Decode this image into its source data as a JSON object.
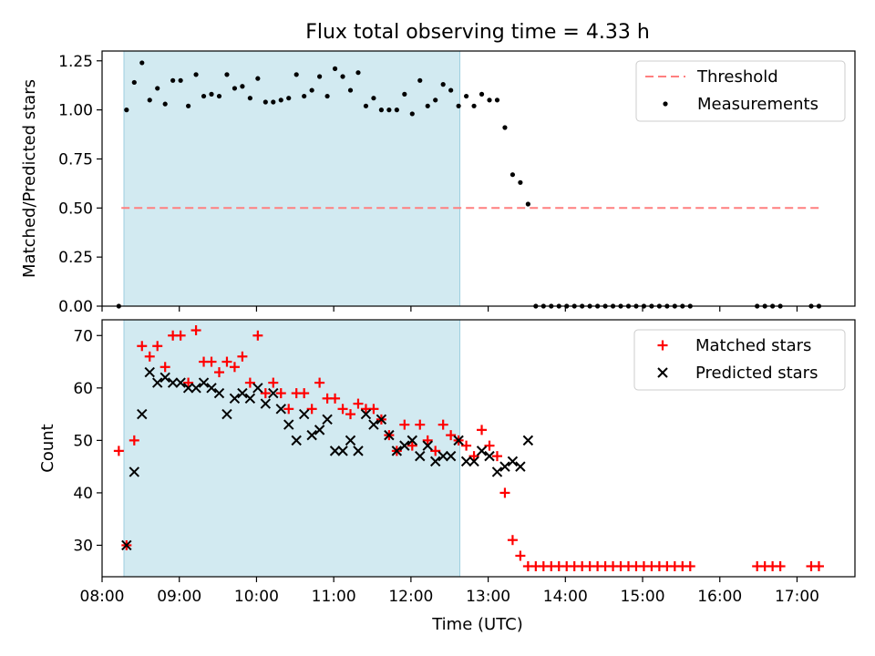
{
  "title": "Flux total observing time = 4.33 h",
  "chart_data": [
    {
      "panel": "top",
      "type": "scatter",
      "ylabel": "Matched/Predicted stars",
      "xlabel": "",
      "ylim": [
        0.0,
        1.3
      ],
      "yticks": [
        "0.00",
        "0.25",
        "0.50",
        "0.75",
        "1.00",
        "1.25"
      ],
      "xlim": [
        "08:00",
        "17:45"
      ],
      "shaded_span": [
        "08:17",
        "12:38"
      ],
      "shade_color": "#add8e6",
      "legend_position": "upper right",
      "threshold": {
        "name": "Threshold",
        "value": 0.5,
        "x": [
          "08:15",
          "17:20"
        ],
        "color": "#ff7f7f",
        "style": "dashed"
      },
      "series": [
        {
          "name": "Measurements",
          "color": "#000000",
          "marker": "dot",
          "points": [
            [
              "08:13",
              0.0
            ],
            [
              "08:19",
              1.0
            ],
            [
              "08:25",
              1.14
            ],
            [
              "08:31",
              1.24
            ],
            [
              "08:37",
              1.05
            ],
            [
              "08:43",
              1.11
            ],
            [
              "08:49",
              1.03
            ],
            [
              "08:55",
              1.15
            ],
            [
              "09:01",
              1.15
            ],
            [
              "09:07",
              1.02
            ],
            [
              "09:13",
              1.18
            ],
            [
              "09:19",
              1.07
            ],
            [
              "09:25",
              1.08
            ],
            [
              "09:31",
              1.07
            ],
            [
              "09:37",
              1.18
            ],
            [
              "09:43",
              1.11
            ],
            [
              "09:49",
              1.12
            ],
            [
              "09:55",
              1.06
            ],
            [
              "10:01",
              1.16
            ],
            [
              "10:07",
              1.04
            ],
            [
              "10:13",
              1.04
            ],
            [
              "10:19",
              1.05
            ],
            [
              "10:25",
              1.06
            ],
            [
              "10:31",
              1.18
            ],
            [
              "10:37",
              1.07
            ],
            [
              "10:43",
              1.1
            ],
            [
              "10:49",
              1.17
            ],
            [
              "10:55",
              1.07
            ],
            [
              "11:01",
              1.21
            ],
            [
              "11:07",
              1.17
            ],
            [
              "11:13",
              1.1
            ],
            [
              "11:19",
              1.19
            ],
            [
              "11:25",
              1.02
            ],
            [
              "11:31",
              1.06
            ],
            [
              "11:37",
              1.0
            ],
            [
              "11:43",
              1.0
            ],
            [
              "11:49",
              1.0
            ],
            [
              "11:55",
              1.08
            ],
            [
              "12:01",
              0.98
            ],
            [
              "12:07",
              1.15
            ],
            [
              "12:13",
              1.02
            ],
            [
              "12:19",
              1.05
            ],
            [
              "12:25",
              1.13
            ],
            [
              "12:31",
              1.1
            ],
            [
              "12:37",
              1.02
            ],
            [
              "12:43",
              1.07
            ],
            [
              "12:49",
              1.02
            ],
            [
              "12:55",
              1.08
            ],
            [
              "13:01",
              1.05
            ],
            [
              "13:07",
              1.05
            ],
            [
              "13:13",
              0.91
            ],
            [
              "13:19",
              0.67
            ],
            [
              "13:25",
              0.63
            ],
            [
              "13:31",
              0.52
            ],
            [
              "13:37",
              0.0
            ],
            [
              "13:43",
              0.0
            ],
            [
              "13:49",
              0.0
            ],
            [
              "13:55",
              0.0
            ],
            [
              "14:01",
              0.0
            ],
            [
              "14:07",
              0.0
            ],
            [
              "14:13",
              0.0
            ],
            [
              "14:19",
              0.0
            ],
            [
              "14:25",
              0.0
            ],
            [
              "14:31",
              0.0
            ],
            [
              "14:37",
              0.0
            ],
            [
              "14:43",
              0.0
            ],
            [
              "14:49",
              0.0
            ],
            [
              "14:55",
              0.0
            ],
            [
              "15:01",
              0.0
            ],
            [
              "15:07",
              0.0
            ],
            [
              "15:13",
              0.0
            ],
            [
              "15:19",
              0.0
            ],
            [
              "15:25",
              0.0
            ],
            [
              "15:31",
              0.0
            ],
            [
              "15:37",
              0.0
            ],
            [
              "16:29",
              0.0
            ],
            [
              "16:35",
              0.0
            ],
            [
              "16:41",
              0.0
            ],
            [
              "16:47",
              0.0
            ],
            [
              "17:11",
              0.0
            ],
            [
              "17:17",
              0.0
            ]
          ]
        }
      ]
    },
    {
      "panel": "bottom",
      "type": "scatter",
      "ylabel": "Count",
      "xlabel": "Time (UTC)",
      "ylim": [
        24,
        73
      ],
      "yticks": [
        "30",
        "40",
        "50",
        "60",
        "70"
      ],
      "xticks": [
        "08:00",
        "09:00",
        "10:00",
        "11:00",
        "12:00",
        "13:00",
        "14:00",
        "15:00",
        "16:00",
        "17:00"
      ],
      "xlim": [
        "08:00",
        "17:45"
      ],
      "shaded_span": [
        "08:17",
        "12:38"
      ],
      "shade_color": "#add8e6",
      "legend_position": "upper right",
      "series": [
        {
          "name": "Matched stars",
          "color": "#ff0000",
          "marker": "plus",
          "points": [
            [
              "08:13",
              48
            ],
            [
              "08:19",
              30
            ],
            [
              "08:25",
              50
            ],
            [
              "08:31",
              68
            ],
            [
              "08:37",
              66
            ],
            [
              "08:43",
              68
            ],
            [
              "08:49",
              64
            ],
            [
              "08:55",
              70
            ],
            [
              "09:01",
              70
            ],
            [
              "09:07",
              61
            ],
            [
              "09:13",
              71
            ],
            [
              "09:19",
              65
            ],
            [
              "09:25",
              65
            ],
            [
              "09:31",
              63
            ],
            [
              "09:37",
              65
            ],
            [
              "09:43",
              64
            ],
            [
              "09:49",
              66
            ],
            [
              "09:55",
              61
            ],
            [
              "10:01",
              70
            ],
            [
              "10:07",
              59
            ],
            [
              "10:13",
              61
            ],
            [
              "10:19",
              59
            ],
            [
              "10:25",
              56
            ],
            [
              "10:31",
              59
            ],
            [
              "10:37",
              59
            ],
            [
              "10:43",
              56
            ],
            [
              "10:49",
              61
            ],
            [
              "10:55",
              58
            ],
            [
              "11:01",
              58
            ],
            [
              "11:07",
              56
            ],
            [
              "11:13",
              55
            ],
            [
              "11:19",
              57
            ],
            [
              "11:25",
              56
            ],
            [
              "11:31",
              56
            ],
            [
              "11:37",
              54
            ],
            [
              "11:43",
              51
            ],
            [
              "11:49",
              48
            ],
            [
              "11:55",
              53
            ],
            [
              "12:01",
              49
            ],
            [
              "12:07",
              53
            ],
            [
              "12:13",
              50
            ],
            [
              "12:19",
              48
            ],
            [
              "12:25",
              53
            ],
            [
              "12:31",
              51
            ],
            [
              "12:37",
              50
            ],
            [
              "12:43",
              49
            ],
            [
              "12:49",
              47
            ],
            [
              "12:55",
              52
            ],
            [
              "13:01",
              49
            ],
            [
              "13:07",
              47
            ],
            [
              "13:13",
              40
            ],
            [
              "13:19",
              31
            ],
            [
              "13:25",
              28
            ],
            [
              "13:31",
              26
            ],
            [
              "13:37",
              26
            ],
            [
              "13:43",
              26
            ],
            [
              "13:49",
              26
            ],
            [
              "13:55",
              26
            ],
            [
              "14:01",
              26
            ],
            [
              "14:07",
              26
            ],
            [
              "14:13",
              26
            ],
            [
              "14:19",
              26
            ],
            [
              "14:25",
              26
            ],
            [
              "14:31",
              26
            ],
            [
              "14:37",
              26
            ],
            [
              "14:43",
              26
            ],
            [
              "14:49",
              26
            ],
            [
              "14:55",
              26
            ],
            [
              "15:01",
              26
            ],
            [
              "15:07",
              26
            ],
            [
              "15:13",
              26
            ],
            [
              "15:19",
              26
            ],
            [
              "15:25",
              26
            ],
            [
              "15:31",
              26
            ],
            [
              "15:37",
              26
            ],
            [
              "16:29",
              26
            ],
            [
              "16:35",
              26
            ],
            [
              "16:41",
              26
            ],
            [
              "16:47",
              26
            ],
            [
              "17:11",
              26
            ],
            [
              "17:17",
              26
            ]
          ]
        },
        {
          "name": "Predicted stars",
          "color": "#000000",
          "marker": "x",
          "points": [
            [
              "08:19",
              30
            ],
            [
              "08:25",
              44
            ],
            [
              "08:31",
              55
            ],
            [
              "08:37",
              63
            ],
            [
              "08:43",
              61
            ],
            [
              "08:49",
              62
            ],
            [
              "08:55",
              61
            ],
            [
              "09:01",
              61
            ],
            [
              "09:07",
              60
            ],
            [
              "09:13",
              60
            ],
            [
              "09:19",
              61
            ],
            [
              "09:25",
              60
            ],
            [
              "09:31",
              59
            ],
            [
              "09:37",
              55
            ],
            [
              "09:43",
              58
            ],
            [
              "09:49",
              59
            ],
            [
              "09:55",
              58
            ],
            [
              "10:01",
              60
            ],
            [
              "10:07",
              57
            ],
            [
              "10:13",
              59
            ],
            [
              "10:19",
              56
            ],
            [
              "10:25",
              53
            ],
            [
              "10:31",
              50
            ],
            [
              "10:37",
              55
            ],
            [
              "10:43",
              51
            ],
            [
              "10:49",
              52
            ],
            [
              "10:55",
              54
            ],
            [
              "11:01",
              48
            ],
            [
              "11:07",
              48
            ],
            [
              "11:13",
              50
            ],
            [
              "11:19",
              48
            ],
            [
              "11:25",
              55
            ],
            [
              "11:31",
              53
            ],
            [
              "11:37",
              54
            ],
            [
              "11:43",
              51
            ],
            [
              "11:49",
              48
            ],
            [
              "11:55",
              49
            ],
            [
              "12:01",
              50
            ],
            [
              "12:07",
              47
            ],
            [
              "12:13",
              49
            ],
            [
              "12:19",
              46
            ],
            [
              "12:25",
              47
            ],
            [
              "12:31",
              47
            ],
            [
              "12:37",
              50
            ],
            [
              "12:43",
              46
            ],
            [
              "12:49",
              46
            ],
            [
              "12:55",
              48
            ],
            [
              "13:01",
              47
            ],
            [
              "13:07",
              44
            ],
            [
              "13:13",
              45
            ],
            [
              "13:19",
              46
            ],
            [
              "13:25",
              45
            ],
            [
              "13:31",
              50
            ]
          ]
        }
      ]
    }
  ]
}
